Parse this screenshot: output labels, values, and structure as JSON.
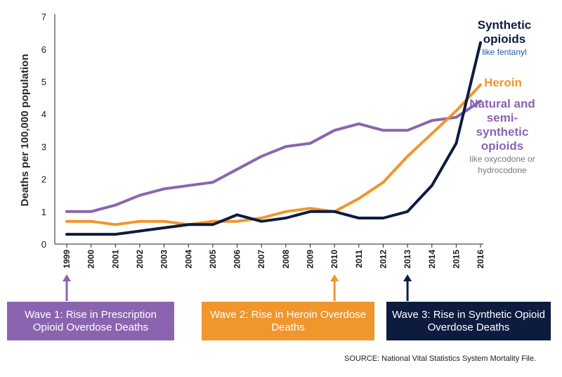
{
  "colors": {
    "synthetic": "#0d1b3f",
    "heroin": "#f0962d",
    "natural": "#8b64b0",
    "note_synthetic": "#1f5aa6",
    "note_natural": "#7a7a7a"
  },
  "chart_data": {
    "type": "line",
    "ylabel": "Deaths per 100,000 population",
    "xlabel": "",
    "ylim": [
      0,
      7
    ],
    "yticks": [
      "0",
      "1",
      "2",
      "3",
      "4",
      "5",
      "6",
      "7"
    ],
    "x": [
      "1999",
      "2000",
      "2001",
      "2002",
      "2003",
      "2004",
      "2005",
      "2006",
      "2007",
      "2008",
      "2009",
      "2010",
      "2011",
      "2012",
      "2013",
      "2014",
      "2015",
      "2016"
    ],
    "series": [
      {
        "key": "natural",
        "name": "Natural and semi-synthetic opioids",
        "values": [
          1.0,
          1.0,
          1.2,
          1.5,
          1.7,
          1.8,
          1.9,
          2.3,
          2.7,
          3.0,
          3.1,
          3.5,
          3.7,
          3.5,
          3.5,
          3.8,
          3.9,
          4.4
        ]
      },
      {
        "key": "heroin",
        "name": "Heroin",
        "values": [
          0.7,
          0.7,
          0.6,
          0.7,
          0.7,
          0.6,
          0.7,
          0.7,
          0.8,
          1.0,
          1.1,
          1.0,
          1.4,
          1.9,
          2.7,
          3.4,
          4.1,
          4.9
        ]
      },
      {
        "key": "synthetic",
        "name": "Synthetic opioids",
        "values": [
          0.3,
          0.3,
          0.3,
          0.4,
          0.5,
          0.6,
          0.6,
          0.9,
          0.7,
          0.8,
          1.0,
          1.0,
          0.8,
          0.8,
          1.0,
          1.8,
          3.1,
          6.2
        ]
      }
    ],
    "grid": false,
    "legend": "right-of-lines labels"
  },
  "labels": {
    "synthetic_name": "Synthetic opioids",
    "synthetic_note": "like fentanyl",
    "heroin_name": "Heroin",
    "natural_name": "Natural and semi-synthetic opioids",
    "natural_note": "like oxycodone or hydrocodone"
  },
  "waves": [
    {
      "text": "Wave 1: Rise in Prescription Opioid Overdose Deaths",
      "year": "1999",
      "color": "#8b64b0"
    },
    {
      "text": "Wave 2: Rise in Heroin Overdose Deaths",
      "year": "2010",
      "color": "#f0962d"
    },
    {
      "text": "Wave 3: Rise in Synthetic Opioid Overdose Deaths",
      "year": "2013",
      "color": "#0d1b3f"
    }
  ],
  "source": "SOURCE: National Vital Statistics System Mortality File."
}
